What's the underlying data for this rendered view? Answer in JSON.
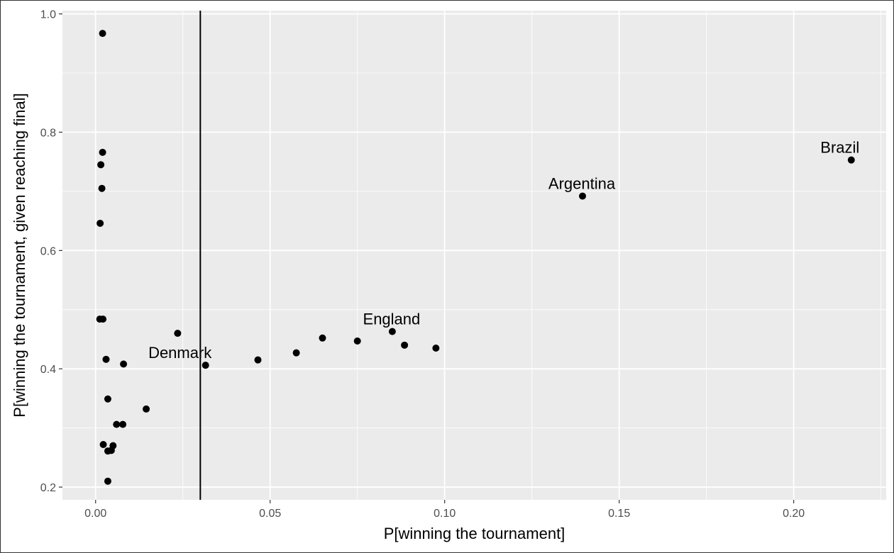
{
  "chart_data": {
    "type": "scatter",
    "xlabel": "P[winning the tournament]",
    "ylabel": "P[winning the tournament, given reaching final]",
    "xlim": [
      -0.0095,
      0.2265
    ],
    "ylim": [
      0.1785,
      1.0055
    ],
    "x_ticks": [
      0.0,
      0.05,
      0.1,
      0.15,
      0.2
    ],
    "x_tick_labels": [
      "0.00",
      "0.05",
      "0.10",
      "0.15",
      "0.20"
    ],
    "y_ticks": [
      0.2,
      0.4,
      0.6,
      0.8,
      1.0
    ],
    "y_tick_labels": [
      "0.2",
      "0.4",
      "0.6",
      "0.8",
      "1.0"
    ],
    "grid": true,
    "vline": 0.03,
    "points": [
      {
        "x": 0.002,
        "y": 0.967
      },
      {
        "x": 0.002,
        "y": 0.766
      },
      {
        "x": 0.0015,
        "y": 0.745
      },
      {
        "x": 0.0018,
        "y": 0.705
      },
      {
        "x": 0.0013,
        "y": 0.646
      },
      {
        "x": 0.0012,
        "y": 0.484
      },
      {
        "x": 0.0021,
        "y": 0.484
      },
      {
        "x": 0.003,
        "y": 0.416
      },
      {
        "x": 0.008,
        "y": 0.408
      },
      {
        "x": 0.0035,
        "y": 0.349
      },
      {
        "x": 0.0145,
        "y": 0.332
      },
      {
        "x": 0.006,
        "y": 0.306
      },
      {
        "x": 0.0078,
        "y": 0.306
      },
      {
        "x": 0.0022,
        "y": 0.272
      },
      {
        "x": 0.005,
        "y": 0.27
      },
      {
        "x": 0.0035,
        "y": 0.261
      },
      {
        "x": 0.0045,
        "y": 0.262
      },
      {
        "x": 0.0035,
        "y": 0.21
      },
      {
        "x": 0.0235,
        "y": 0.46
      },
      {
        "x": 0.0315,
        "y": 0.406,
        "label": "Denmark"
      },
      {
        "x": 0.0465,
        "y": 0.415
      },
      {
        "x": 0.0575,
        "y": 0.427
      },
      {
        "x": 0.065,
        "y": 0.452
      },
      {
        "x": 0.075,
        "y": 0.447
      },
      {
        "x": 0.085,
        "y": 0.463,
        "label": "England"
      },
      {
        "x": 0.0885,
        "y": 0.44
      },
      {
        "x": 0.0975,
        "y": 0.435
      },
      {
        "x": 0.1395,
        "y": 0.692,
        "label": "Argentina"
      },
      {
        "x": 0.2165,
        "y": 0.753,
        "label": "Brazil"
      }
    ]
  },
  "colors": {
    "panel_background": "#ebebeb",
    "grid_major": "#ffffff",
    "points": "#000000",
    "vline": "#000000"
  }
}
